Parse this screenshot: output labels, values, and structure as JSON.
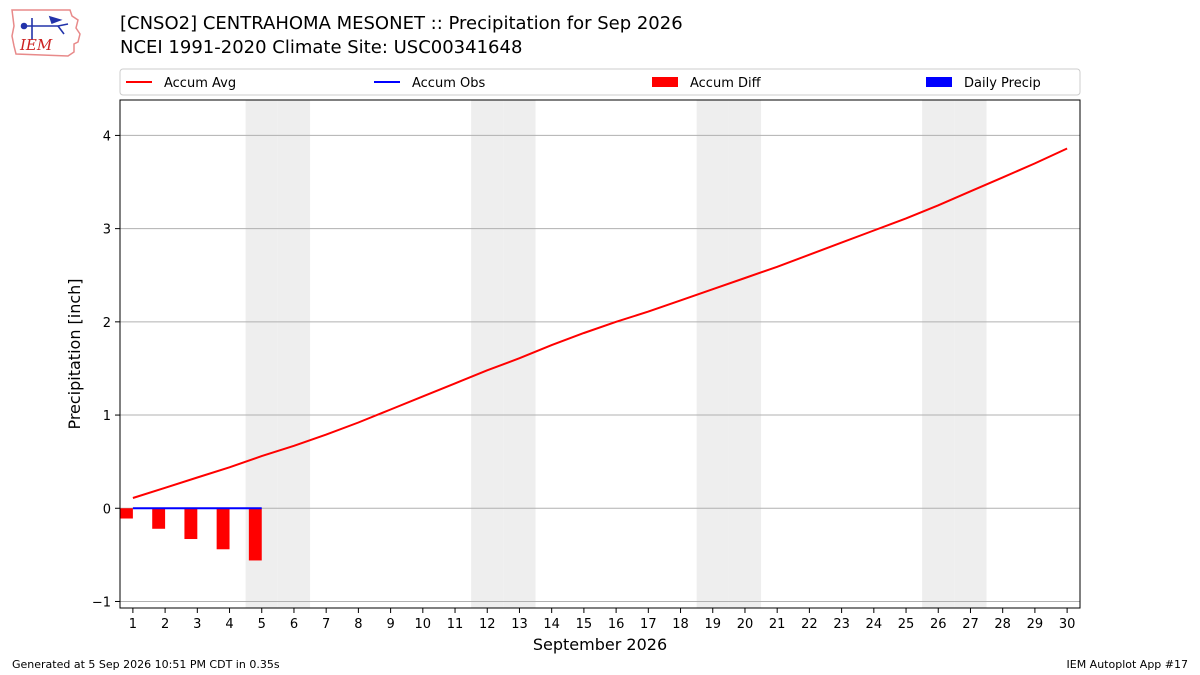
{
  "header": {
    "title_line1": "[CNSO2] CENTRAHOMA MESONET :: Precipitation for Sep 2026",
    "title_line2": "NCEI 1991-2020 Climate Site: USC00341648",
    "logo_text": "IEM"
  },
  "footer": {
    "generated": "Generated at 5 Sep 2026 10:51 PM CDT in 0.35s",
    "app": "IEM Autoplot App #17"
  },
  "colors": {
    "accum_avg": "#ff0000",
    "accum_obs": "#0000ff",
    "accum_diff": "#ff0000",
    "daily_precip": "#0000ff",
    "weekend_shade": "#eeeeee",
    "grid": "#b0b0b0"
  },
  "chart_data": {
    "type": "line",
    "xlabel": "September 2026",
    "ylabel": "Precipitation [inch]",
    "xlim": [
      0.6,
      30.4
    ],
    "ylim": [
      -1.07,
      4.38
    ],
    "y_ticks": [
      -1,
      0,
      1,
      2,
      3,
      4
    ],
    "x_tick_labels": [
      "1",
      "2",
      "3",
      "4",
      "5",
      "6",
      "7",
      "8",
      "9",
      "10",
      "11",
      "12",
      "13",
      "14",
      "15",
      "16",
      "17",
      "18",
      "19",
      "20",
      "21",
      "22",
      "23",
      "24",
      "25",
      "26",
      "27",
      "28",
      "29",
      "30"
    ],
    "grid": "y-only",
    "legend": {
      "placement": "top",
      "entries": [
        {
          "label": "Accum Avg",
          "kind": "line",
          "color": "#ff0000"
        },
        {
          "label": "Accum Obs",
          "kind": "line",
          "color": "#0000ff"
        },
        {
          "label": "Accum Diff",
          "kind": "box",
          "color": "#ff0000"
        },
        {
          "label": "Daily Precip",
          "kind": "box",
          "color": "#0000ff"
        }
      ]
    },
    "weekend_days": [
      5,
      6,
      12,
      13,
      19,
      20,
      26,
      27
    ],
    "series": [
      {
        "name": "Accum Avg",
        "kind": "line",
        "x": [
          1,
          2,
          3,
          4,
          5,
          6,
          7,
          8,
          9,
          10,
          11,
          12,
          13,
          14,
          15,
          16,
          17,
          18,
          19,
          20,
          21,
          22,
          23,
          24,
          25,
          26,
          27,
          28,
          29,
          30
        ],
        "values": [
          0.11,
          0.22,
          0.33,
          0.44,
          0.56,
          0.67,
          0.79,
          0.92,
          1.06,
          1.2,
          1.34,
          1.48,
          1.61,
          1.75,
          1.88,
          2.0,
          2.11,
          2.23,
          2.35,
          2.47,
          2.59,
          2.72,
          2.85,
          2.98,
          3.11,
          3.25,
          3.4,
          3.55,
          3.7,
          3.86
        ]
      },
      {
        "name": "Accum Obs",
        "kind": "line",
        "x": [
          1,
          2,
          3,
          4,
          5
        ],
        "values": [
          0.0,
          0.0,
          0.0,
          0.0,
          0.0
        ]
      },
      {
        "name": "Accum Diff",
        "kind": "bar",
        "x": [
          1,
          2,
          3,
          4,
          5
        ],
        "values": [
          -0.11,
          -0.22,
          -0.33,
          -0.44,
          -0.56
        ]
      },
      {
        "name": "Daily Precip",
        "kind": "bar",
        "x": [
          1,
          2,
          3,
          4,
          5
        ],
        "values": [
          0,
          0,
          0,
          0,
          0
        ]
      }
    ]
  }
}
